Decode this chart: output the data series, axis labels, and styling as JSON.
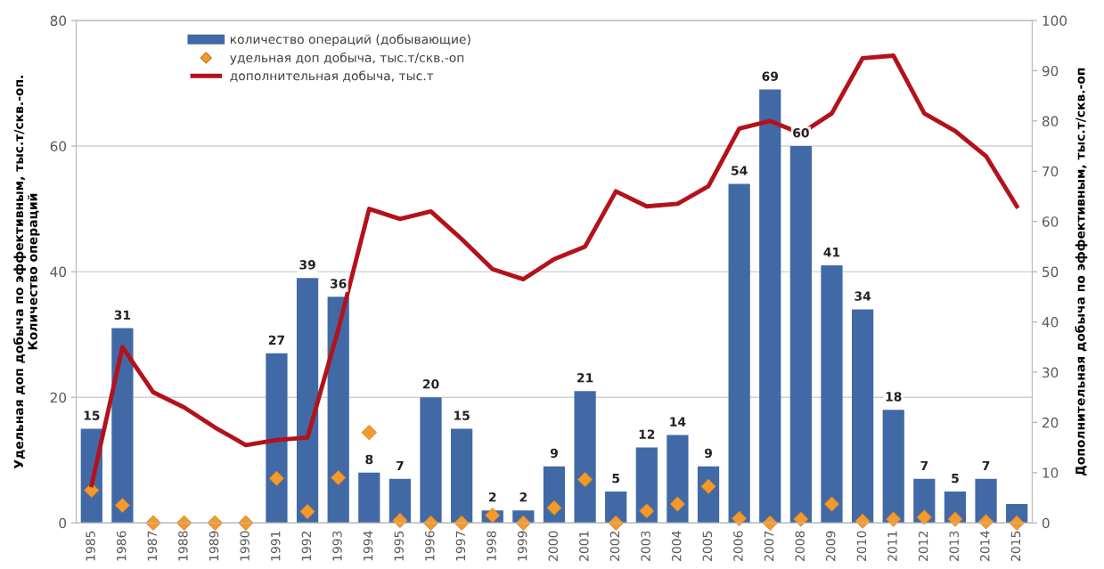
{
  "chart_data": {
    "type": "bar",
    "ylabel": "Удельная доп добыча по эффективным, тыс.т/скв.-оп.\nКоличество операций",
    "y2label": "Дополнительная добыча по эффективным, тыс.т/скв.-оп",
    "categories": [
      "1985",
      "1986",
      "1987",
      "1988",
      "1989",
      "1990",
      "1991",
      "1992",
      "1993",
      "1994",
      "1995",
      "1996",
      "1997",
      "1998",
      "1999",
      "2000",
      "2001",
      "2002",
      "2003",
      "2004",
      "2005",
      "2006",
      "2007",
      "2008",
      "2009",
      "2010",
      "2011",
      "2012",
      "2013",
      "2014",
      "2015"
    ],
    "series": [
      {
        "name": "количество операций (добывающие)",
        "color": "#4169a6",
        "values": [
          15,
          31,
          null,
          null,
          null,
          null,
          27,
          39,
          36,
          8,
          7,
          20,
          15,
          2,
          2,
          9,
          21,
          5,
          12,
          14,
          9,
          54,
          69,
          60,
          41,
          34,
          18,
          7,
          5,
          7,
          3
        ],
        "value_labels": [
          "15",
          "31",
          null,
          null,
          null,
          null,
          "27",
          "39",
          "36",
          "8",
          "7",
          "20",
          "15",
          "2",
          "2",
          "9",
          "21",
          "5",
          "12",
          "14",
          "9",
          "54",
          "69",
          "60",
          "41",
          "34",
          "18",
          "7",
          "5",
          "7",
          null
        ]
      },
      {
        "name": "удельная доп добыча, тыс.т/скв.-оп",
        "type": "scatter",
        "color": "#f39a2c",
        "marker": "diamond",
        "values": [
          5.2,
          2.8,
          0,
          0,
          0,
          0,
          7.1,
          1.8,
          7.2,
          14.4,
          0.4,
          0,
          0,
          1.2,
          0,
          2.4,
          6.9,
          0,
          1.9,
          3.0,
          5.8,
          0.7,
          0,
          0.6,
          3.0,
          0.3,
          0.6,
          0.9,
          0.6,
          0.2,
          0
        ]
      },
      {
        "name": "дополнительная добыча, тыс.т",
        "type": "line",
        "color": "#b3121b",
        "axis": "y2",
        "values": [
          7.5,
          35,
          26,
          23,
          19,
          15.5,
          16.5,
          17,
          38.5,
          62.5,
          60.5,
          62,
          56.5,
          50.5,
          48.5,
          52.5,
          55,
          66,
          63,
          63.5,
          67,
          78.5,
          80,
          77.5,
          81.5,
          92.5,
          93,
          81.5,
          78,
          73,
          63
        ]
      }
    ],
    "ylim": [
      0,
      80
    ],
    "yticks": [
      0,
      20,
      40,
      60,
      80
    ],
    "y2lim": [
      0,
      100
    ],
    "y2ticks": [
      0,
      10,
      20,
      30,
      40,
      50,
      60,
      70,
      80,
      90,
      100
    ],
    "grid": true,
    "legend": "top left"
  }
}
